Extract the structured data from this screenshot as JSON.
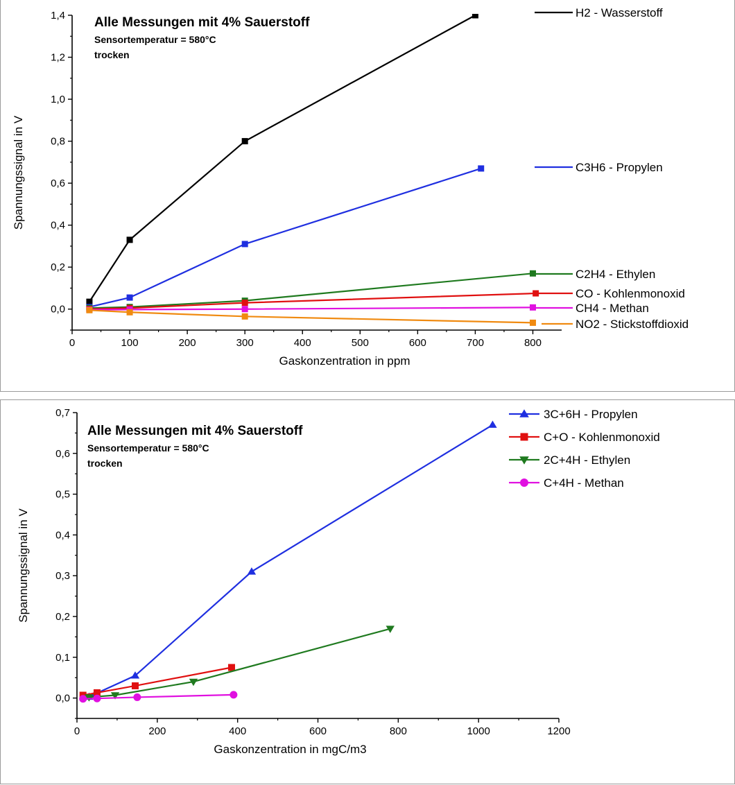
{
  "colors": {
    "black": "#000000",
    "blue": "#1f2fe0",
    "green": "#1f7a1f",
    "red": "#e01010",
    "magenta": "#e010e0",
    "orange": "#f08a10"
  },
  "chart_data": [
    {
      "type": "line",
      "title": "Alle Messungen mit 4% Sauerstoff",
      "subtitle_lines": [
        "Sensortemperatur = 580°C",
        "trocken"
      ],
      "xlabel": "Gaskonzentration in ppm",
      "ylabel": "Spannungssignal in V",
      "xlim": [
        0,
        850
      ],
      "ylim": [
        -0.1,
        1.4
      ],
      "xticks": [
        0,
        100,
        200,
        300,
        400,
        500,
        600,
        700,
        800
      ],
      "xtick_labels": [
        "0",
        "100",
        "200",
        "300",
        "400",
        "500",
        "600",
        "700",
        "800"
      ],
      "yticks": [
        0.0,
        0.2,
        0.4,
        0.6,
        0.8,
        1.0,
        1.2,
        1.4
      ],
      "ytick_labels": [
        "0,0",
        "0,2",
        "0,4",
        "0,6",
        "0,8",
        "1,0",
        "1,2",
        "1,4"
      ],
      "legend": "right, inline labels",
      "series": [
        {
          "name": "H2 - Wasserstoff",
          "color": "#000000",
          "marker": "square",
          "x": [
            30,
            100,
            300,
            700
          ],
          "y": [
            0.035,
            0.33,
            0.8,
            1.4
          ]
        },
        {
          "name": "C3H6 - Propylen",
          "color": "#1f2fe0",
          "marker": "square",
          "x": [
            30,
            100,
            300,
            710
          ],
          "y": [
            0.01,
            0.055,
            0.31,
            0.67
          ]
        },
        {
          "name": "C2H4 - Ethylen",
          "color": "#1f7a1f",
          "marker": "square",
          "x": [
            30,
            100,
            300,
            800
          ],
          "y": [
            0.005,
            0.01,
            0.04,
            0.17
          ]
        },
        {
          "name": "CO - Kohlenmonoxid",
          "color": "#e01010",
          "marker": "square",
          "x": [
            30,
            100,
            300,
            805
          ],
          "y": [
            0.0,
            0.005,
            0.03,
            0.075
          ]
        },
        {
          "name": "CH4 - Methan",
          "color": "#e010e0",
          "marker": "square",
          "x": [
            30,
            100,
            300,
            800
          ],
          "y": [
            -0.003,
            -0.002,
            0.0,
            0.008
          ]
        },
        {
          "name": "NO2 - Stickstoffdioxid",
          "color": "#f08a10",
          "marker": "square",
          "x": [
            30,
            100,
            300,
            800
          ],
          "y": [
            -0.005,
            -0.015,
            -0.035,
            -0.065
          ]
        }
      ]
    },
    {
      "type": "line",
      "title": "Alle Messungen mit 4% Sauerstoff",
      "subtitle_lines": [
        "Sensortemperatur = 580°C",
        "trocken"
      ],
      "xlabel": "Gaskonzentration in mgC/m3",
      "ylabel": "Spannungssignal in V",
      "xlim": [
        0,
        1200
      ],
      "ylim": [
        -0.05,
        0.7
      ],
      "xticks": [
        0,
        200,
        400,
        600,
        800,
        1000,
        1200
      ],
      "xtick_labels": [
        "0",
        "200",
        "400",
        "600",
        "800",
        "1000",
        "1200"
      ],
      "yticks": [
        0.0,
        0.1,
        0.2,
        0.3,
        0.4,
        0.5,
        0.6,
        0.7
      ],
      "ytick_labels": [
        "0,0",
        "0,1",
        "0,2",
        "0,3",
        "0,4",
        "0,5",
        "0,6",
        "0,7"
      ],
      "legend": "top-right",
      "series": [
        {
          "name": "3C+6H - Propylen",
          "color": "#1f2fe0",
          "marker": "triangle-up",
          "x": [
            30,
            45,
            145,
            435,
            1035
          ],
          "y": [
            0.003,
            0.01,
            0.055,
            0.31,
            0.67
          ]
        },
        {
          "name": "C+O - Kohlenmonoxid",
          "color": "#e01010",
          "marker": "square",
          "x": [
            15,
            50,
            145,
            385
          ],
          "y": [
            0.007,
            0.013,
            0.03,
            0.075
          ]
        },
        {
          "name": "2C+4H - Ethylen",
          "color": "#1f7a1f",
          "marker": "triangle-down",
          "x": [
            30,
            95,
            290,
            780
          ],
          "y": [
            0.002,
            0.007,
            0.04,
            0.17
          ]
        },
        {
          "name": "C+4H - Methan",
          "color": "#e010e0",
          "marker": "circle",
          "x": [
            15,
            50,
            150,
            390
          ],
          "y": [
            -0.002,
            -0.001,
            0.002,
            0.008
          ]
        }
      ]
    }
  ]
}
